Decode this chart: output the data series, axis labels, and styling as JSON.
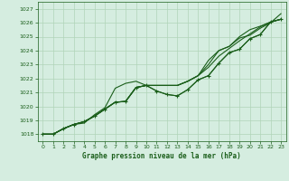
{
  "xlabel": "Graphe pression niveau de la mer (hPa)",
  "background_color": "#d5ede0",
  "grid_color": "#b0d4b8",
  "line_color": "#1a5e1a",
  "ylim": [
    1017.5,
    1027.5
  ],
  "xlim": [
    -0.5,
    23.5
  ],
  "yticks": [
    1018,
    1019,
    1020,
    1021,
    1022,
    1023,
    1024,
    1025,
    1026,
    1027
  ],
  "xticks": [
    0,
    1,
    2,
    3,
    4,
    5,
    6,
    7,
    8,
    9,
    10,
    11,
    12,
    13,
    14,
    15,
    16,
    17,
    18,
    19,
    20,
    21,
    22,
    23
  ],
  "series": [
    [
      1018.0,
      1018.0,
      1018.4,
      1018.7,
      1018.8,
      1019.4,
      1019.9,
      1021.3,
      1021.65,
      1021.8,
      1021.5,
      1021.5,
      1021.5,
      1021.5,
      1021.8,
      1022.2,
      1023.3,
      1024.0,
      1024.3,
      1024.9,
      1025.1,
      1025.6,
      1026.0,
      1026.65
    ],
    [
      1018.0,
      1018.0,
      1018.4,
      1018.7,
      1018.9,
      1019.3,
      1019.8,
      1020.3,
      1020.35,
      1021.35,
      1021.5,
      1021.5,
      1021.5,
      1021.5,
      1021.8,
      1022.2,
      1022.8,
      1023.6,
      1024.15,
      1024.7,
      1025.2,
      1025.7,
      1026.05,
      1026.25
    ],
    [
      1018.0,
      1018.0,
      1018.4,
      1018.7,
      1018.9,
      1019.3,
      1019.8,
      1020.3,
      1020.35,
      1021.35,
      1021.5,
      1021.1,
      1020.85,
      1020.75,
      1021.2,
      1021.9,
      1022.2,
      1023.1,
      1023.85,
      1024.1,
      1024.85,
      1025.15,
      1026.05,
      1026.25
    ],
    [
      1018.0,
      1018.0,
      1018.4,
      1018.7,
      1018.9,
      1019.3,
      1019.8,
      1020.3,
      1020.35,
      1021.35,
      1021.5,
      1021.5,
      1021.5,
      1021.5,
      1021.8,
      1022.2,
      1023.0,
      1024.0,
      1024.3,
      1025.0,
      1025.5,
      1025.75,
      1026.05,
      1026.25
    ]
  ],
  "marker_series": [
    1018.0,
    1018.0,
    1018.4,
    1018.7,
    1018.9,
    1019.3,
    1019.8,
    1020.3,
    1020.35,
    1021.35,
    1021.5,
    1021.1,
    1020.85,
    1020.75,
    1021.2,
    1021.9,
    1022.2,
    1023.1,
    1023.85,
    1024.1,
    1024.85,
    1025.15,
    1026.05,
    1026.25
  ]
}
